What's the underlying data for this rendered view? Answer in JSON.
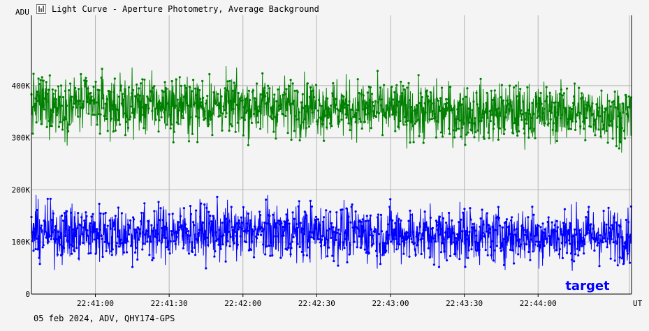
{
  "window": {
    "title": "Light Curve - Aperture Photometry, Average Background",
    "footer": "05 feb 2024, ADV, QHY174-GPS"
  },
  "chart_data": {
    "type": "line",
    "title": "Light Curve - Aperture Photometry, Average Background",
    "ylabel": "ADU",
    "xlabel": "UT",
    "ylim": [
      0,
      535000
    ],
    "xlim": [
      "22:40:34",
      "22:44:38"
    ],
    "y_ticks": [
      {
        "value": 0,
        "label": "0"
      },
      {
        "value": 100000,
        "label": "100K"
      },
      {
        "value": 200000,
        "label": "200K"
      },
      {
        "value": 300000,
        "label": "300K"
      },
      {
        "value": 400000,
        "label": "400K"
      }
    ],
    "x_ticks": [
      "22:41:00",
      "22:41:30",
      "22:42:00",
      "22:42:30",
      "22:43:00",
      "22:43:30",
      "22:44:00"
    ],
    "grid": true,
    "legend": "bottom-right",
    "annotation": "target",
    "colors": {
      "background": "#f4f4f4",
      "grid": "#b4b4b4",
      "axis": "#000000",
      "label": "#0000ff"
    },
    "series": [
      {
        "color": "#008000",
        "note": "upper curve, ~1700 frames; dense scatter between ~250K and ~460K",
        "x_range": [
          "22:40:34",
          "22:44:38"
        ],
        "y_profile_times": [
          "22:40:34",
          "22:41:00",
          "22:41:30",
          "22:42:00",
          "22:42:30",
          "22:43:00",
          "22:43:30",
          "22:44:00",
          "22:44:38"
        ],
        "y_profile_means": [
          365000,
          362000,
          363000,
          362000,
          360000,
          352000,
          348000,
          350000,
          345000
        ],
        "y_std": 28000,
        "y_min": 252000,
        "y_max": 462000
      },
      {
        "color": "#0000ff",
        "note": "lower curve, ~1700 frames; dense scatter between ~40K and ~190K",
        "x_range": [
          "22:40:34",
          "22:44:38"
        ],
        "y_profile_times": [
          "22:40:34",
          "22:41:00",
          "22:41:30",
          "22:42:00",
          "22:42:30",
          "22:43:00",
          "22:43:30",
          "22:44:00",
          "22:44:38"
        ],
        "y_profile_means": [
          118000,
          117000,
          118000,
          120000,
          119000,
          115000,
          113000,
          112000,
          113000
        ],
        "y_std": 27000,
        "y_min": 38000,
        "y_max": 190000
      }
    ]
  }
}
